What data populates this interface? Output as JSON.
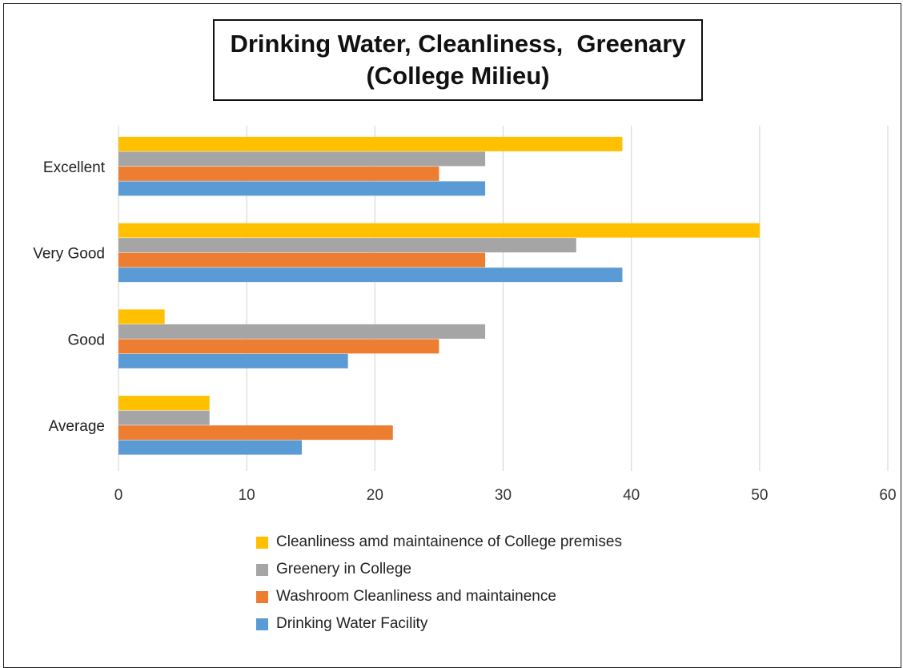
{
  "chart_data": {
    "type": "bar",
    "orientation": "horizontal",
    "title_lines": [
      "Drinking Water, Cleanliness,  Greenary",
      "(College Milieu)"
    ],
    "categories": [
      "Excellent",
      "Very Good",
      "Good",
      "Average"
    ],
    "series": [
      {
        "name": "Cleanliness amd maintainence of College premises",
        "color": "#FFC000",
        "values": [
          39.3,
          50,
          3.6,
          7.1
        ]
      },
      {
        "name": "Greenery in College",
        "color": "#A5A5A5",
        "values": [
          28.6,
          35.7,
          28.6,
          7.1
        ]
      },
      {
        "name": "Washroom Cleanliness and maintainence",
        "color": "#ED7D31",
        "values": [
          25,
          28.6,
          25,
          21.4
        ]
      },
      {
        "name": "Drinking Water Facility",
        "color": "#5B9BD5",
        "values": [
          28.6,
          39.3,
          17.9,
          14.3
        ]
      }
    ],
    "xlim": [
      0,
      60
    ],
    "xticks": [
      "0",
      "10",
      "20",
      "30",
      "40",
      "50",
      "60"
    ],
    "grid": "vertical",
    "legend_position": "bottom"
  }
}
